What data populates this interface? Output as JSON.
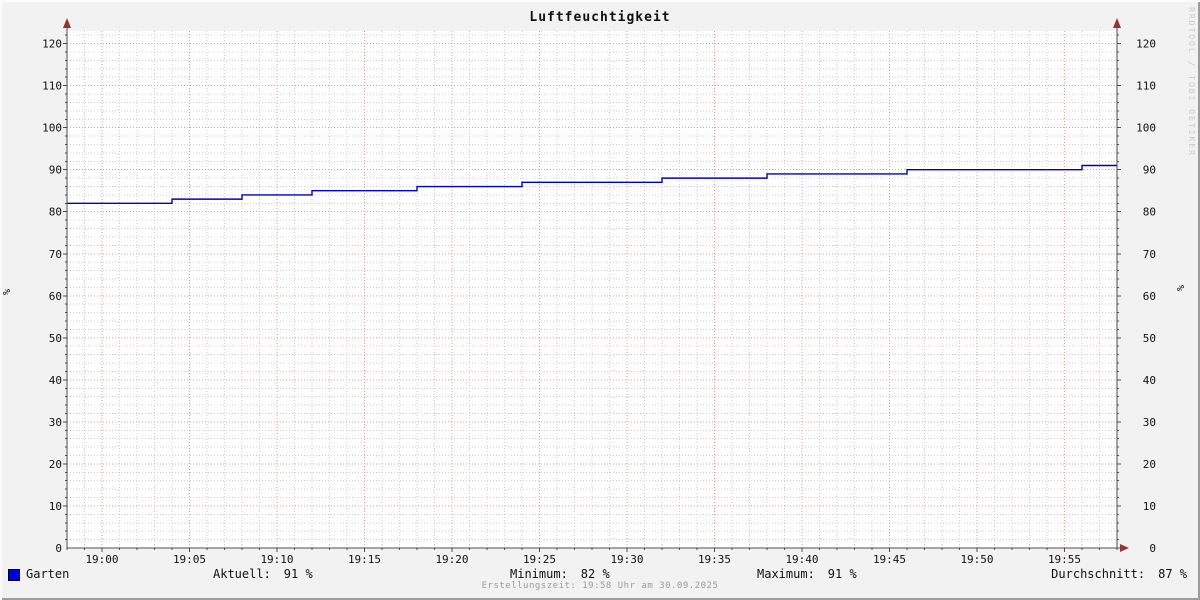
{
  "window": {
    "title": "Luftfeuchtigkeit"
  },
  "watermark": "RRDTOOL / TOBI OETIKER",
  "footer": "Erstellungszeit: 19:58 Uhr am 30.09.2025",
  "legend": {
    "series": "Garten",
    "stats": [
      {
        "label": "Aktuell:",
        "value": "91 %"
      },
      {
        "label": "Minimum:",
        "value": "82 %"
      },
      {
        "label": "Maximum:",
        "value": "91 %"
      },
      {
        "label": "Durchschnitt:",
        "value": "87 %"
      }
    ]
  },
  "colors": {
    "background": "#f2f2f2",
    "canvas": "#ffffff",
    "line": "#0000c0",
    "legend_square": "#0000dd",
    "major_grid": "#ee9a9a",
    "minor_grid": "#cfcfcf",
    "axis": "#4d4d4d",
    "arrow": "#993333",
    "tick_text": "#111111",
    "watermark_text": "#cbcbcb"
  },
  "chart_data": {
    "type": "line",
    "title": "Luftfeuchtigkeit",
    "xlabel": "",
    "ylabel": "%",
    "ylabel_right": "%",
    "grid": true,
    "legend_position": "bottom",
    "xlim": [
      -2,
      58
    ],
    "ylim": [
      0,
      123
    ],
    "x_major_step": 5,
    "x_minor_step": 1,
    "y_major_step": 10,
    "y_minor_step": 2,
    "x_ticks": [
      {
        "t": 0,
        "label": "19:00"
      },
      {
        "t": 5,
        "label": "19:05"
      },
      {
        "t": 10,
        "label": "19:10"
      },
      {
        "t": 15,
        "label": "19:15"
      },
      {
        "t": 20,
        "label": "19:20"
      },
      {
        "t": 25,
        "label": "19:25"
      },
      {
        "t": 30,
        "label": "19:30"
      },
      {
        "t": 35,
        "label": "19:35"
      },
      {
        "t": 40,
        "label": "19:40"
      },
      {
        "t": 45,
        "label": "19:45"
      },
      {
        "t": 50,
        "label": "19:50"
      },
      {
        "t": 55,
        "label": "19:55"
      }
    ],
    "y_ticks": [
      0,
      10,
      20,
      30,
      40,
      50,
      60,
      70,
      80,
      90,
      100,
      110,
      120
    ],
    "series": [
      {
        "name": "Garten",
        "unit": "%",
        "steps": [
          [
            -2,
            82
          ],
          [
            4,
            83
          ],
          [
            8,
            84
          ],
          [
            12,
            85
          ],
          [
            18,
            86
          ],
          [
            24,
            87
          ],
          [
            32,
            88
          ],
          [
            38,
            89
          ],
          [
            46,
            90
          ],
          [
            56,
            91
          ]
        ],
        "end_minute": 58,
        "aktuell": 91,
        "minimum": 82,
        "maximum": 91,
        "durchschnitt": 87
      }
    ]
  }
}
